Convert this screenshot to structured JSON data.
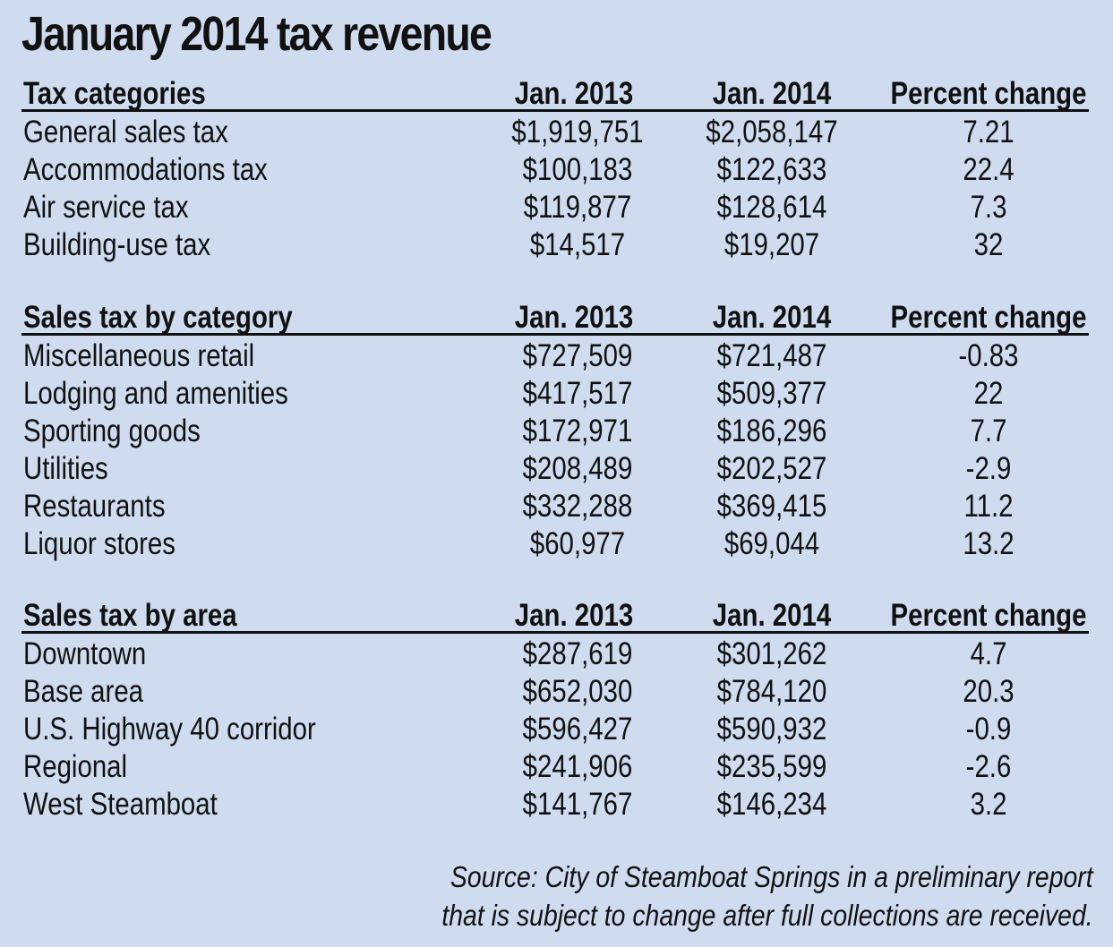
{
  "title": "January 2014 tax revenue",
  "sections": [
    {
      "heading": "Tax categories",
      "col1": "Jan. 2013",
      "col2": "Jan. 2014",
      "col3": "Percent change",
      "rows": [
        {
          "name": "General sales tax",
          "v2013": "$1,919,751",
          "v2014": "$2,058,147",
          "pct": "7.21"
        },
        {
          "name": "Accommodations tax",
          "v2013": "$100,183",
          "v2014": "$122,633",
          "pct": "22.4"
        },
        {
          "name": "Air service tax",
          "v2013": "$119,877",
          "v2014": "$128,614",
          "pct": "7.3"
        },
        {
          "name": "Building-use tax",
          "v2013": "$14,517",
          "v2014": "$19,207",
          "pct": "32"
        }
      ]
    },
    {
      "heading": "Sales tax by category",
      "col1": "Jan. 2013",
      "col2": "Jan. 2014",
      "col3": "Percent change",
      "rows": [
        {
          "name": "Miscellaneous retail",
          "v2013": "$727,509",
          "v2014": "$721,487",
          "pct": "-0.83"
        },
        {
          "name": "Lodging and amenities",
          "v2013": "$417,517",
          "v2014": "$509,377",
          "pct": "22"
        },
        {
          "name": "Sporting goods",
          "v2013": "$172,971",
          "v2014": "$186,296",
          "pct": "7.7"
        },
        {
          "name": "Utilities",
          "v2013": "$208,489",
          "v2014": "$202,527",
          "pct": "-2.9"
        },
        {
          "name": "Restaurants",
          "v2013": "$332,288",
          "v2014": "$369,415",
          "pct": "11.2"
        },
        {
          "name": "Liquor stores",
          "v2013": "$60,977",
          "v2014": "$69,044",
          "pct": "13.2"
        }
      ]
    },
    {
      "heading": "Sales tax by area",
      "col1": "Jan. 2013",
      "col2": "Jan. 2014",
      "col3": "Percent change",
      "rows": [
        {
          "name": "Downtown",
          "v2013": "$287,619",
          "v2014": "$301,262",
          "pct": "4.7"
        },
        {
          "name": "Base area",
          "v2013": "$652,030",
          "v2014": "$784,120",
          "pct": "20.3"
        },
        {
          "name": "U.S. Highway 40 corridor",
          "v2013": "$596,427",
          "v2014": "$590,932",
          "pct": "-0.9"
        },
        {
          "name": "Regional",
          "v2013": "$241,906",
          "v2014": "$235,599",
          "pct": "-2.6"
        },
        {
          "name": "West Steamboat",
          "v2013": "$141,767",
          "v2014": "$146,234",
          "pct": "3.2"
        }
      ]
    }
  ],
  "source": {
    "line1": "Source: City of Steamboat Springs in a preliminary report",
    "line2": "that is subject to change after full collections are received."
  }
}
